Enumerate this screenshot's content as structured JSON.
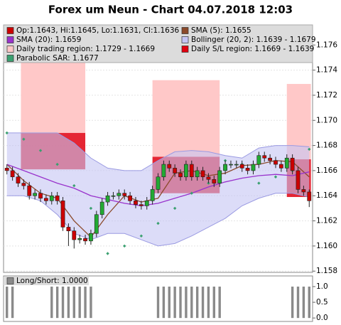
{
  "chart_data": [
    {
      "type": "candlestick",
      "title": "Forex um Neun - Chart 04.07.2018 12:03",
      "xlim": [
        -0.6,
        54.6
      ],
      "ylim": [
        1.1579,
        1.1776
      ],
      "yticks": [
        1.158,
        {
          "value": 1.16,
          "label": "1.160"
        },
        1.162,
        1.164,
        1.166,
        1.168,
        {
          "value": 1.17,
          "label": "1.170"
        },
        1.172,
        1.174,
        1.176
      ],
      "grid": true,
      "series": [
        {
          "name": "Op:1.1643, Hi:1.1645, Lo:1.1631, Cl:1.1636",
          "type": "candlestick",
          "color": "#cc0000",
          "up_color": "#22aa33",
          "open": [
            1.1662,
            1.166,
            1.1655,
            1.165,
            1.1648,
            1.164,
            1.1642,
            1.1638,
            1.1636,
            1.164,
            1.1636,
            1.1615,
            1.1612,
            1.1605,
            1.1606,
            1.1604,
            1.161,
            1.1625,
            1.1635,
            1.164,
            1.164,
            1.1642,
            1.164,
            1.1636,
            1.1633,
            1.1632,
            1.1636,
            1.1645,
            1.1655,
            1.1665,
            1.1662,
            1.1658,
            1.1655,
            1.1665,
            1.1655,
            1.166,
            1.1655,
            1.1653,
            1.165,
            1.166,
            1.1665,
            1.1665,
            1.1665,
            1.1662,
            1.166,
            1.1665,
            1.1672,
            1.167,
            1.1668,
            1.1665,
            1.1662,
            1.167,
            1.166,
            1.1645,
            1.1643
          ],
          "high": [
            1.1665,
            1.1663,
            1.1658,
            1.1653,
            1.1651,
            1.1645,
            1.1645,
            1.1641,
            1.1643,
            1.1643,
            1.1639,
            1.1618,
            1.1615,
            1.1609,
            1.1609,
            1.1613,
            1.1628,
            1.1638,
            1.1643,
            1.1643,
            1.1645,
            1.1645,
            1.1643,
            1.1639,
            1.1636,
            1.1639,
            1.1648,
            1.1658,
            1.1668,
            1.1668,
            1.1665,
            1.1661,
            1.1668,
            1.1668,
            1.1663,
            1.1663,
            1.1658,
            1.1656,
            1.1663,
            1.1668,
            1.1668,
            1.1668,
            1.1668,
            1.1665,
            1.1668,
            1.1675,
            1.1675,
            1.1673,
            1.1671,
            1.1668,
            1.1673,
            1.1673,
            1.1663,
            1.1648,
            1.1645
          ],
          "low": [
            1.1657,
            1.1652,
            1.1647,
            1.1645,
            1.1637,
            1.1637,
            1.1635,
            1.1633,
            1.1633,
            1.1633,
            1.1612,
            1.16,
            1.1598,
            1.1602,
            1.1601,
            1.1601,
            1.1607,
            1.1622,
            1.1632,
            1.1637,
            1.1637,
            1.1637,
            1.1633,
            1.163,
            1.1629,
            1.1629,
            1.1633,
            1.1642,
            1.1652,
            1.1659,
            1.1655,
            1.1652,
            1.1652,
            1.1652,
            1.1652,
            1.1652,
            1.165,
            1.1647,
            1.1647,
            1.1657,
            1.1662,
            1.1662,
            1.1659,
            1.1657,
            1.1657,
            1.1662,
            1.1667,
            1.1665,
            1.1662,
            1.1659,
            1.1659,
            1.1657,
            1.1642,
            1.164,
            1.1631
          ],
          "close": [
            1.166,
            1.1655,
            1.165,
            1.1648,
            1.164,
            1.1642,
            1.1638,
            1.1636,
            1.164,
            1.1636,
            1.1615,
            1.1612,
            1.1605,
            1.1606,
            1.1604,
            1.161,
            1.1625,
            1.1635,
            1.164,
            1.164,
            1.1642,
            1.164,
            1.1636,
            1.1633,
            1.1632,
            1.1636,
            1.1645,
            1.1655,
            1.1665,
            1.1662,
            1.1658,
            1.1655,
            1.1665,
            1.1655,
            1.166,
            1.1655,
            1.1653,
            1.165,
            1.166,
            1.1665,
            1.1665,
            1.1665,
            1.1662,
            1.166,
            1.1665,
            1.1672,
            1.167,
            1.1668,
            1.1665,
            1.1662,
            1.167,
            1.166,
            1.1645,
            1.1643,
            1.1636
          ]
        },
        {
          "name": "SMA (5): 1.1655",
          "type": "line",
          "color": "#8b4a2b",
          "x": [
            0,
            3,
            6,
            9,
            12,
            15,
            18,
            21,
            24,
            27,
            30,
            33,
            36,
            39,
            42,
            45,
            48,
            51,
            54
          ],
          "values": [
            1.1665,
            1.1652,
            1.1642,
            1.1638,
            1.162,
            1.1607,
            1.1625,
            1.164,
            1.1635,
            1.1638,
            1.1658,
            1.166,
            1.1656,
            1.1658,
            1.1664,
            1.1665,
            1.1668,
            1.1667,
            1.1655
          ]
        },
        {
          "name": "SMA (20): 1.1659",
          "type": "line",
          "color": "#9933cc",
          "x": [
            0,
            3,
            6,
            9,
            12,
            15,
            18,
            21,
            24,
            27,
            30,
            33,
            36,
            39,
            42,
            45,
            48,
            51,
            54
          ],
          "values": [
            1.1665,
            1.166,
            1.1655,
            1.165,
            1.1646,
            1.164,
            1.1637,
            1.1634,
            1.1632,
            1.1634,
            1.1638,
            1.1642,
            1.1647,
            1.1651,
            1.1654,
            1.1656,
            1.1657,
            1.1656,
            1.1659
          ]
        },
        {
          "name": "Bollinger (20, 2): 1.1639 - 1.1679",
          "type": "band",
          "color": "#c4c4f4",
          "edge_color": "#9a9ae2",
          "x": [
            0,
            3,
            6,
            9,
            12,
            15,
            18,
            21,
            24,
            27,
            30,
            33,
            36,
            39,
            42,
            45,
            48,
            51,
            54
          ],
          "upper": [
            1.169,
            1.169,
            1.169,
            1.169,
            1.1682,
            1.167,
            1.1662,
            1.166,
            1.166,
            1.1668,
            1.1675,
            1.1676,
            1.1675,
            1.1672,
            1.167,
            1.1678,
            1.168,
            1.168,
            1.1679
          ],
          "lower": [
            1.164,
            1.164,
            1.1636,
            1.1625,
            1.161,
            1.1605,
            1.161,
            1.161,
            1.1605,
            1.16,
            1.1602,
            1.1608,
            1.1615,
            1.1622,
            1.1632,
            1.1638,
            1.1642,
            1.1642,
            1.1639
          ]
        },
        {
          "name": "Daily trading region: 1.1729 - 1.1669",
          "type": "region",
          "color": "#ffc8c8",
          "regions": [
            {
              "start": 2.5,
              "end": 14,
              "high": 1.175,
              "low": 1.169
            },
            {
              "start": 26,
              "end": 38,
              "high": 1.1732,
              "low": 1.1671
            },
            {
              "start": 50,
              "end": 54.3,
              "high": 1.1729,
              "low": 1.1669
            }
          ]
        },
        {
          "name": "Daily S/L region: 1.1669 - 1.1639",
          "type": "region",
          "color": "#e00010",
          "regions": [
            {
              "start": 2.5,
              "end": 14,
              "high": 1.169,
              "low": 1.1661
            },
            {
              "start": 26,
              "end": 38,
              "high": 1.1671,
              "low": 1.1642
            },
            {
              "start": 50,
              "end": 54.3,
              "high": 1.1669,
              "low": 1.1639
            }
          ]
        },
        {
          "name": "Parabolic SAR: 1.1677",
          "type": "dots",
          "color": "#3aa070",
          "x": [
            0,
            3,
            6,
            9,
            12,
            15,
            18,
            21,
            24,
            27,
            30,
            33,
            36,
            39,
            42,
            45,
            48,
            51,
            54
          ],
          "values": [
            1.169,
            1.1685,
            1.1676,
            1.1665,
            1.1648,
            1.163,
            1.1594,
            1.16,
            1.1608,
            1.1618,
            1.163,
            1.1642,
            1.165,
            1.1668,
            1.1665,
            1.165,
            1.1655,
            1.166,
            1.1677
          ]
        }
      ]
    },
    {
      "type": "bar",
      "xlim": [
        -0.6,
        54.6
      ],
      "ylim": [
        -0.11,
        1.34
      ],
      "yticks": [
        {
          "value": 0,
          "label": "0.0"
        },
        0.5,
        {
          "value": 1,
          "label": "1.0"
        }
      ],
      "series": [
        {
          "name": "Long/Short: 1.0000",
          "color": "#8a8a8a",
          "values": [
            1,
            1,
            0,
            0,
            0,
            0,
            0,
            0,
            1,
            1,
            1,
            1,
            1,
            1,
            1,
            1,
            0,
            0,
            0,
            0,
            0,
            0,
            0,
            0,
            0,
            0,
            0,
            1,
            1,
            1,
            1,
            1,
            1,
            1,
            1,
            1,
            1,
            1,
            1,
            0,
            0,
            0,
            0,
            0,
            0,
            0,
            0,
            0,
            0,
            0,
            0,
            1,
            1,
            1,
            1
          ]
        }
      ]
    }
  ]
}
